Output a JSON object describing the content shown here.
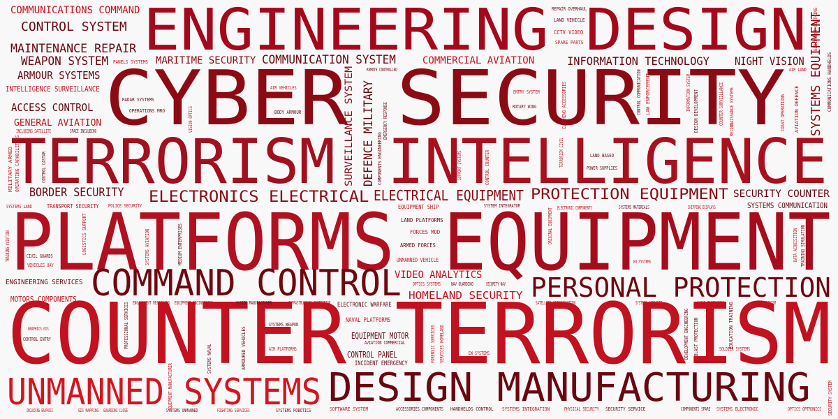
{
  "words": [
    {
      "text": "ENGINEERING DESIGN",
      "color": "#a4091b"
    },
    {
      "text": "CYBER SECURITY",
      "color": "#8c0a14"
    },
    {
      "text": "TERRORISM",
      "color": "#a0101e"
    },
    {
      "text": "INTELLIGENCE",
      "color": "#a8101e"
    },
    {
      "text": "PLATFORMS",
      "color": "#b0101f"
    },
    {
      "text": "EQUIPMENT",
      "color": "#a70c1c"
    },
    {
      "text": "COUNTER TERRORISM",
      "color": "#c2111f"
    },
    {
      "text": "COMMAND CONTROL",
      "color": "#6e0710"
    },
    {
      "text": "PERSONAL PROTECTION",
      "color": "#6e0710"
    },
    {
      "text": "UNMANNED SYSTEMS",
      "color": "#d4141e"
    },
    {
      "text": "DESIGN MANUFACTURING",
      "color": "#6a0610"
    },
    {
      "text": "COMMUNICATIONS COMMAND",
      "color": "#c8101e"
    },
    {
      "text": "CONTROL SYSTEM",
      "color": "#6a0610"
    },
    {
      "text": "MAINTENANCE REPAIR",
      "color": "#6a0610"
    },
    {
      "text": "WEAPON SYSTEM",
      "color": "#6a0610"
    },
    {
      "text": "ARMOUR SYSTEMS",
      "color": "#6a0610"
    },
    {
      "text": "INTELLIGENCE SURVEILLANCE",
      "color": "#c8101e"
    },
    {
      "text": "ACCESS CONTROL",
      "color": "#6a0610"
    },
    {
      "text": "GENERAL AVIATION",
      "color": "#c8101e"
    },
    {
      "text": "MARITIME SECURITY",
      "color": "#8c0a14"
    },
    {
      "text": "COMMUNICATION SYSTEM",
      "color": "#6a0610"
    },
    {
      "text": "COMMERCIAL AVIATION",
      "color": "#c8101e"
    },
    {
      "text": "INFORMATION TECHNOLOGY",
      "color": "#6a0610"
    },
    {
      "text": "NIGHT VISION",
      "color": "#6a0610"
    },
    {
      "text": "SYSTEMS EQUIPMENT",
      "color": "#8c0a14"
    },
    {
      "text": "BORDER SECURITY",
      "color": "#6a0610"
    },
    {
      "text": "ELECTRONICS ELECTRICAL",
      "color": "#8c0a14"
    },
    {
      "text": "ELECTRICAL EQUIPMENT",
      "color": "#8c0a14"
    },
    {
      "text": "PROTECTION EQUIPMENT",
      "color": "#8c0a14"
    },
    {
      "text": "SECURITY COUNTER",
      "color": "#6a0610"
    },
    {
      "text": "SYSTEMS COMMUNICATION",
      "color": "#6a0610"
    },
    {
      "text": "SURVEILLANCE SYSTEM",
      "color": "#8c0a14"
    },
    {
      "text": "DEFENCE MILITARY",
      "color": "#6a0610"
    },
    {
      "text": "VIDEO ANALYTICS",
      "color": "#c8101e"
    },
    {
      "text": "HOMELAND SECURITY",
      "color": "#c8101e"
    },
    {
      "text": "ENGINEERING SERVICES",
      "color": "#6a0610"
    },
    {
      "text": "MOTORS COMPONENTS",
      "color": "#c8101e"
    },
    {
      "text": "EQUIPMENT MOTOR",
      "color": "#6a0610"
    },
    {
      "text": "CONTROL PANEL",
      "color": "#6a0610"
    },
    {
      "text": "NAVAL PLATFORMS",
      "color": "#c8101e"
    },
    {
      "text": "ELECTRONIC WARFARE",
      "color": "#6a0610"
    },
    {
      "text": "INCIDENT EMERGENCY",
      "color": "#6a0610"
    },
    {
      "text": "AVIATION COMMERCIAL",
      "color": "#6a0610"
    },
    {
      "text": "REPAIR OVERHAUL",
      "color": "#6a0610"
    },
    {
      "text": "LAND VEHICLE",
      "color": "#6a0610"
    },
    {
      "text": "CCTV VIDEO",
      "color": "#c8101e"
    },
    {
      "text": "SPARE PARTS",
      "color": "#c8101e"
    },
    {
      "text": "PANELS SYSTEMS",
      "color": "#c8101e"
    },
    {
      "text": "REMOTE CONTROLLED",
      "color": "#6a0610"
    },
    {
      "text": "AIR VEHICLES",
      "color": "#c8101e"
    },
    {
      "text": "RADAR SYSTEMS",
      "color": "#6a0610"
    },
    {
      "text": "OPERATIONS MRO",
      "color": "#6a0610"
    },
    {
      "text": "BODY ARMOUR",
      "color": "#6a0610"
    },
    {
      "text": "ENTRY SYSTEM",
      "color": "#c8101e"
    },
    {
      "text": "ROTARY WING",
      "color": "#6a0610"
    },
    {
      "text": "AIR LAND",
      "color": "#c8101e"
    },
    {
      "text": "INCLUDING SATELLITE",
      "color": "#c8101e"
    },
    {
      "text": "SPACE INCLUDING",
      "color": "#6a0610"
    },
    {
      "text": "LAND BASED",
      "color": "#6a0610"
    },
    {
      "text": "POWER SUPPLIES",
      "color": "#6a0610"
    },
    {
      "text": "TRANSPORT SECURITY",
      "color": "#c8101e"
    },
    {
      "text": "SYSTEMS LAND",
      "color": "#c8101e"
    },
    {
      "text": "POLICE SECURITY",
      "color": "#c8101e"
    },
    {
      "text": "EQUIPMENT SHIP",
      "color": "#c8101e"
    },
    {
      "text": "LAND PLATFORMS",
      "color": "#6a0610"
    },
    {
      "text": "FORCES MOD",
      "color": "#c8101e"
    },
    {
      "text": "ARMED FORCES",
      "color": "#6a0610"
    },
    {
      "text": "UNMANNED VEHICLE",
      "color": "#c8101e"
    },
    {
      "text": "SYSTEM INTEGRATOR",
      "color": "#6a0610"
    },
    {
      "text": "ELECTRONIC COMPONENTS",
      "color": "#c8101e"
    },
    {
      "text": "SYSTEMS MATERIALS",
      "color": "#6a0610"
    },
    {
      "text": "SHIPPING DISPLAYS",
      "color": "#c8101e"
    },
    {
      "text": "CIVIL GUARDS",
      "color": "#6a0610"
    },
    {
      "text": "VEHICLES UAV",
      "color": "#c8101e"
    },
    {
      "text": "OPTICS SYSTEMS",
      "color": "#c8101e"
    },
    {
      "text": "NAV GUARDING",
      "color": "#6a0610"
    },
    {
      "text": "SECURITY NAV",
      "color": "#6a0610"
    },
    {
      "text": "EO SYSTEMS",
      "color": "#c8101e"
    },
    {
      "text": "ENGAGEMENT RECORDING",
      "color": "#c8101e"
    },
    {
      "text": "EQUIPMENT ENGINEERING",
      "color": "#c8101e"
    },
    {
      "text": "SYSTEM MANUFACTURER",
      "color": "#6a0610"
    },
    {
      "text": "INFRASTRUCTURE PROTECTION",
      "color": "#c8101e"
    },
    {
      "text": "SATELLITE COMMUNICATION",
      "color": "#c8101e"
    },
    {
      "text": "SYSTEMS COMBINED",
      "color": "#c8101e"
    },
    {
      "text": "CLOSE PROTECTION",
      "color": "#c8101e"
    },
    {
      "text": "ANTI TERRORISM",
      "color": "#c8101e"
    },
    {
      "text": "GRAPHICS GIS",
      "color": "#c8101e"
    },
    {
      "text": "CONTROL ENTRY",
      "color": "#6a0610"
    },
    {
      "text": "SYSTEMS WEAPON",
      "color": "#6a0610"
    },
    {
      "text": "AIR PLATFORMS",
      "color": "#c8101e"
    },
    {
      "text": "EW SYSTEMS",
      "color": "#c8101e"
    },
    {
      "text": "SOLDIER SYSTEMS",
      "color": "#c8101e"
    },
    {
      "text": "DATA ACQUISITION",
      "color": "#c8101e"
    },
    {
      "text": "TRAINING SIMULATION",
      "color": "#6a0610"
    },
    {
      "text": "INCLUDING GRAPHICS",
      "color": "#c8101e"
    },
    {
      "text": "GIS MAPPING",
      "color": "#c8101e"
    },
    {
      "text": "GUARDING CLOSE",
      "color": "#c8101e"
    },
    {
      "text": "SYSTEMS UNMANNED",
      "color": "#6a0610"
    },
    {
      "text": "FIGHTING SERVICES",
      "color": "#c8101e"
    },
    {
      "text": "SYSTEMS ROBOTICS",
      "color": "#6a0610"
    },
    {
      "text": "SOFTWARE SYSTEM",
      "color": "#c8101e"
    },
    {
      "text": "ACCESSORIES COMPONENTS",
      "color": "#6a0610"
    },
    {
      "text": "HANDHELDS CONTROL",
      "color": "#6a0610"
    },
    {
      "text": "SYSTEMS INTEGRATION",
      "color": "#c8101e"
    },
    {
      "text": "PHYSICAL SECURITY",
      "color": "#c8101e"
    },
    {
      "text": "SECURITY SERVICE",
      "color": "#6a0610"
    },
    {
      "text": "COMPONENTS SPARE",
      "color": "#6a0610"
    },
    {
      "text": "SYSTEMS ELECTRONIC",
      "color": "#c8101e"
    },
    {
      "text": "OPTICS OPTRONICS",
      "color": "#c8101e"
    },
    {
      "text": "EQUIPMENT CLOTHING",
      "color": "#c8101e"
    },
    {
      "text": "COMMUNICATIONS HANDHELDS",
      "color": "#6a0610"
    },
    {
      "text": "AVIATION DEFENCE",
      "color": "#c8101e"
    },
    {
      "text": "COAST OPERATIONS",
      "color": "#c8101e"
    },
    {
      "text": "RECONNAISSANCE SYSTEMS",
      "color": "#c8101e"
    },
    {
      "text": "COUNTER SURVEILLANCE",
      "color": "#c8101e"
    },
    {
      "text": "DESIGN DEVELOPMENT",
      "color": "#6a0610"
    },
    {
      "text": "INFORMATION SYSTEM",
      "color": "#c8101e"
    },
    {
      "text": "LAW ENFORCEMENT",
      "color": "#c8101e"
    },
    {
      "text": "CONTROL COMMUNICATION",
      "color": "#6a0610"
    },
    {
      "text": "CLOTHING ACCESSORIES",
      "color": "#c8101e"
    },
    {
      "text": "TERRORISM CIVIL",
      "color": "#c8101e"
    },
    {
      "text": "CONTROL COUNTER",
      "color": "#c8101e"
    },
    {
      "text": "SUPPORT SYSTEMS",
      "color": "#c8101e"
    },
    {
      "text": "VISION OPTICS",
      "color": "#c8101e"
    },
    {
      "text": "EMERGENCY RESPONSE",
      "color": "#6a0610"
    },
    {
      "text": "COMPONENTS ENGINEERING",
      "color": "#6a0610"
    },
    {
      "text": "MILITARY ARMED",
      "color": "#c8101e"
    },
    {
      "text": "OPERATING CAPABILITIES",
      "color": "#c8101e"
    },
    {
      "text": "CONTROL CASTAR",
      "color": "#6a0610"
    },
    {
      "text": "TRAINING AVIATION",
      "color": "#c8101e"
    },
    {
      "text": "LOGISTICS SUPPORT",
      "color": "#c8101e"
    },
    {
      "text": "SYSTEMS AVIATION",
      "color": "#c8101e"
    },
    {
      "text": "MEDIUM ENTERPRISES",
      "color": "#6a0610"
    },
    {
      "text": "ORIGINAL EQUIPMENT",
      "color": "#c8101e"
    },
    {
      "text": "PROFESSIONAL SERVICES",
      "color": "#6a0610"
    },
    {
      "text": "SYSTEMS NAVAL",
      "color": "#6a0610"
    },
    {
      "text": "ARMOURED VEHICLES",
      "color": "#6a0610"
    },
    {
      "text": "FORENSIC SERVICES",
      "color": "#c8101e"
    },
    {
      "text": "SERVICES HOMELAND",
      "color": "#c8101e"
    },
    {
      "text": "DEVELOPMENT ENGINEERING",
      "color": "#6a0610"
    },
    {
      "text": "BLAST PROTECTION",
      "color": "#6a0610"
    },
    {
      "text": "EDUCATION TRAINING",
      "color": "#6a0610"
    },
    {
      "text": "EQUIPMENT MANUFACTURER",
      "color": "#c8101e"
    },
    {
      "text": "SECURITY SYSTEM",
      "color": "#c8101e"
    }
  ]
}
